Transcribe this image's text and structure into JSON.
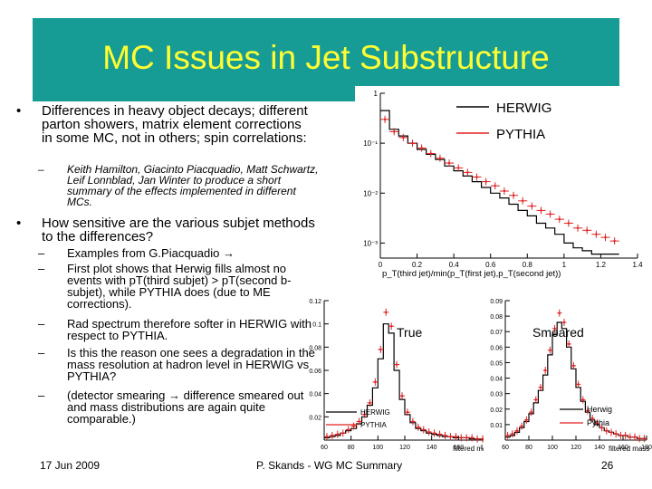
{
  "title": "MC Issues in Jet Substructure",
  "bullet1": {
    "marker": "•",
    "text": "Differences in heavy object decays; different parton showers, matrix element corrections in some MC, not in others; spin correlations:",
    "sub": [
      {
        "marker": "–",
        "text": "Keith Hamilton, Giacinto Piacquadio, Matt Schwartz, Leif Lonnblad, Jan Winter to produce a short summary of the effects implemented in different MCs."
      }
    ]
  },
  "bullet2": {
    "marker": "•",
    "text": "How sensitive are the various subjet methods to the differences?",
    "sub": [
      {
        "marker": "–",
        "text": "Examples from G.Piacquadio →"
      },
      {
        "marker": "–",
        "text": "First plot shows that Herwig fills almost no events with pT(third subjet) > pT(second b-subjet), while PYTHIA does (due to ME corrections)."
      },
      {
        "marker": "–",
        "text": "Rad spectrum therefore softer in HERWIG with respect to PYTHIA."
      },
      {
        "marker": "–",
        "text": "Is this the reason one sees a degradation in the mass resolution at hadron level in HERWIG vs PYTHIA?"
      },
      {
        "marker": "–",
        "text": "(detector smearing → difference smeared out and mass distributions are again quite comparable.)"
      }
    ]
  },
  "footer": {
    "date": "17 Jun 2009",
    "center": "P. Skands - WG MC Summary",
    "page": "26"
  },
  "colors": {
    "title_band": "#169c95",
    "title_text": "#ffff33",
    "herwig": "#000000",
    "pythia": "#e02020"
  },
  "chart_data": [
    {
      "type": "line",
      "title": "",
      "xlabel": "p_T(third jet)/min(p_T(first jet),p_T(second jet))",
      "ylabel": "",
      "xlim": [
        0,
        1.4
      ],
      "ylim": [
        0.0005,
        1
      ],
      "yscale": "log",
      "x_ticks": [
        "0",
        "0.2",
        "0.4",
        "0.6",
        "0.8",
        "1",
        "1.2",
        "1.4"
      ],
      "y_ticks": [
        "1",
        "10⁻¹",
        "10⁻²",
        "10⁻³"
      ],
      "legend": [
        "HERWIG",
        "PYTHIA"
      ],
      "x": [
        0.025,
        0.075,
        0.125,
        0.175,
        0.225,
        0.275,
        0.325,
        0.375,
        0.425,
        0.475,
        0.525,
        0.575,
        0.625,
        0.675,
        0.725,
        0.775,
        0.825,
        0.875,
        0.925,
        0.975,
        1.025,
        1.075,
        1.125,
        1.175,
        1.225,
        1.275
      ],
      "series": [
        {
          "name": "HERWIG",
          "values": [
            0.45,
            0.19,
            0.14,
            0.1,
            0.075,
            0.06,
            0.047,
            0.035,
            0.028,
            0.022,
            0.017,
            0.013,
            0.01,
            0.008,
            0.006,
            0.0045,
            0.0035,
            0.0025,
            0.002,
            0.0015,
            0.001,
            0.0008,
            0.0007,
            0.0006,
            0.0006,
            0.0006
          ]
        },
        {
          "name": "PYTHIA",
          "values": [
            0.3,
            0.17,
            0.13,
            0.1,
            0.08,
            0.062,
            0.05,
            0.04,
            0.032,
            0.026,
            0.021,
            0.017,
            0.014,
            0.011,
            0.009,
            0.007,
            0.0055,
            0.0045,
            0.0038,
            0.003,
            0.0025,
            0.002,
            0.0018,
            0.0015,
            0.0013,
            0.0011
          ]
        }
      ]
    },
    {
      "type": "line",
      "title": "True",
      "xlabel": "filtered mass",
      "ylabel": "",
      "xlim": [
        60,
        180
      ],
      "ylim": [
        0,
        0.12
      ],
      "x_ticks": [
        "60",
        "80",
        "100",
        "120",
        "140",
        "160",
        "180"
      ],
      "y_ticks": [
        "0.12",
        "0.1",
        "0.08",
        "0.06",
        "0.04",
        "0.02"
      ],
      "legend": [
        "HERWIG",
        "PYTHIA"
      ],
      "x": [
        62,
        66,
        70,
        74,
        78,
        82,
        86,
        90,
        94,
        98,
        102,
        106,
        110,
        114,
        118,
        122,
        126,
        130,
        134,
        138,
        142,
        146,
        150,
        154,
        158,
        162,
        166,
        170,
        174,
        178
      ],
      "series": [
        {
          "name": "HERWIG",
          "values": [
            0.002,
            0.003,
            0.004,
            0.006,
            0.008,
            0.01,
            0.014,
            0.02,
            0.03,
            0.045,
            0.07,
            0.1,
            0.092,
            0.06,
            0.035,
            0.022,
            0.015,
            0.01,
            0.008,
            0.006,
            0.005,
            0.004,
            0.003,
            0.003,
            0.002,
            0.002,
            0.002,
            0.001,
            0.001,
            0.001
          ]
        },
        {
          "name": "PYTHIA",
          "values": [
            0.003,
            0.004,
            0.005,
            0.006,
            0.009,
            0.012,
            0.016,
            0.022,
            0.032,
            0.05,
            0.078,
            0.11,
            0.098,
            0.065,
            0.038,
            0.024,
            0.016,
            0.011,
            0.009,
            0.007,
            0.006,
            0.005,
            0.004,
            0.003,
            0.003,
            0.002,
            0.002,
            0.002,
            0.001,
            0.001
          ]
        }
      ]
    },
    {
      "type": "line",
      "title": "Smeared",
      "xlabel": "filtered mass",
      "ylabel": "",
      "xlim": [
        60,
        180
      ],
      "ylim": [
        0,
        0.09
      ],
      "x_ticks": [
        "60",
        "80",
        "100",
        "120",
        "140",
        "160",
        "180"
      ],
      "y_ticks": [
        "0.09",
        "0.08",
        "0.07",
        "0.06",
        "0.05",
        "0.04",
        "0.03",
        "0.02",
        "0.01"
      ],
      "legend": [
        "Herwig",
        "Pythia"
      ],
      "x": [
        62,
        66,
        70,
        74,
        78,
        82,
        86,
        90,
        94,
        98,
        102,
        106,
        110,
        114,
        118,
        122,
        126,
        130,
        134,
        138,
        142,
        146,
        150,
        154,
        158,
        162,
        166,
        170,
        174,
        178
      ],
      "series": [
        {
          "name": "Herwig",
          "values": [
            0.002,
            0.003,
            0.005,
            0.008,
            0.012,
            0.017,
            0.024,
            0.032,
            0.042,
            0.055,
            0.068,
            0.076,
            0.072,
            0.06,
            0.046,
            0.034,
            0.025,
            0.018,
            0.013,
            0.01,
            0.008,
            0.006,
            0.005,
            0.004,
            0.003,
            0.003,
            0.002,
            0.002,
            0.001,
            0.001
          ]
        },
        {
          "name": "Pythia",
          "values": [
            0.003,
            0.004,
            0.006,
            0.009,
            0.013,
            0.018,
            0.026,
            0.034,
            0.045,
            0.058,
            0.072,
            0.082,
            0.076,
            0.062,
            0.048,
            0.036,
            0.026,
            0.019,
            0.014,
            0.011,
            0.008,
            0.006,
            0.005,
            0.004,
            0.003,
            0.003,
            0.002,
            0.002,
            0.001,
            0.001
          ]
        }
      ]
    }
  ]
}
